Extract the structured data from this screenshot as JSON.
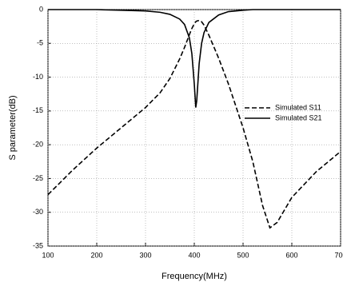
{
  "chart_data": {
    "type": "line",
    "x_label": "Frequency(MHz)",
    "y_label": "S parameter(dB)",
    "x": [
      100,
      150,
      200,
      250,
      300,
      330,
      350,
      370,
      380,
      390,
      395,
      400,
      403,
      405,
      410,
      415,
      420,
      430,
      450,
      470,
      500,
      520,
      540,
      555,
      570,
      600,
      650,
      700
    ],
    "series": [
      {
        "name": "Simulated S11",
        "color": "#000000",
        "style": "dashed",
        "values": [
          -27.4,
          -23.8,
          -20.5,
          -17.5,
          -14.5,
          -12.3,
          -10.2,
          -7.3,
          -5.6,
          -3.7,
          -2.8,
          -2.1,
          -1.8,
          -1.7,
          -1.6,
          -1.8,
          -2.3,
          -3.8,
          -7.2,
          -11,
          -17.5,
          -22.5,
          -29,
          -32.3,
          -31.5,
          -27.8,
          -24,
          -21
        ]
      },
      {
        "name": "Simulated S21",
        "color": "#000000",
        "style": "solid",
        "values": [
          0,
          0,
          0,
          -0.1,
          -0.2,
          -0.4,
          -0.7,
          -1.4,
          -2.2,
          -4.2,
          -6.5,
          -11,
          -14.5,
          -13.5,
          -8,
          -5,
          -3.4,
          -1.9,
          -0.8,
          -0.3,
          -0.1,
          0,
          0,
          0,
          0,
          0,
          0,
          0
        ]
      }
    ],
    "xlim": [
      100,
      700
    ],
    "xticks": [
      100,
      200,
      300,
      400,
      500,
      600,
      700
    ],
    "ylim": [
      -35,
      0
    ],
    "yticks": [
      0,
      -5,
      -10,
      -15,
      -20,
      -25,
      -30,
      -35
    ],
    "grid": true
  }
}
